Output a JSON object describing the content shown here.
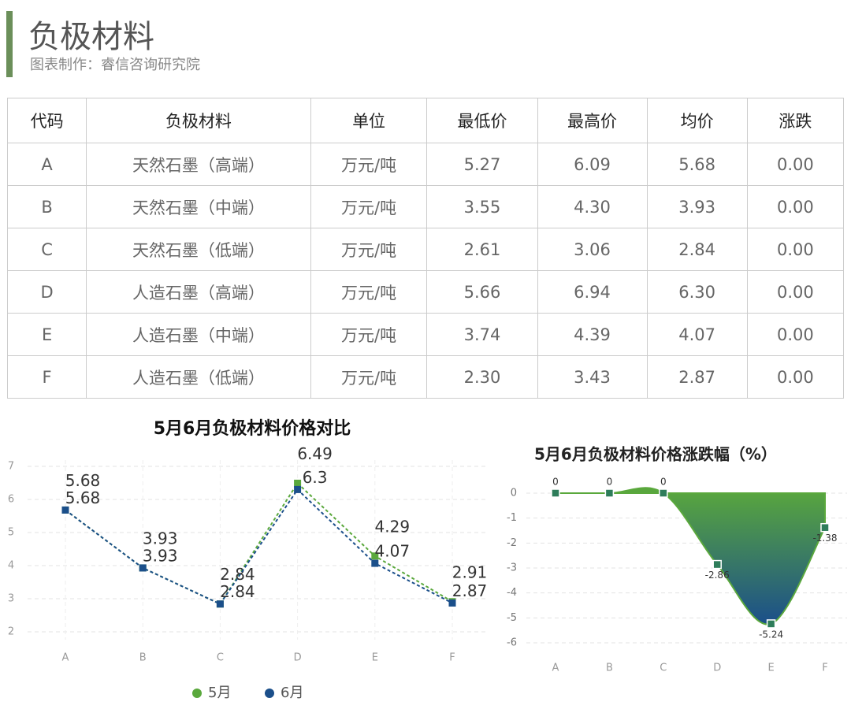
{
  "header": {
    "title": "负极材料",
    "subtitle": "图表制作：睿信咨询研究院"
  },
  "table": {
    "columns": [
      "代码",
      "负极材料",
      "单位",
      "最低价",
      "最高价",
      "均价",
      "涨跌"
    ],
    "rows": [
      [
        "A",
        "天然石墨（高端）",
        "万元/吨",
        "5.27",
        "6.09",
        "5.68",
        "0.00"
      ],
      [
        "B",
        "天然石墨（中端）",
        "万元/吨",
        "3.55",
        "4.30",
        "3.93",
        "0.00"
      ],
      [
        "C",
        "天然石墨（低端）",
        "万元/吨",
        "2.61",
        "3.06",
        "2.84",
        "0.00"
      ],
      [
        "D",
        "人造石墨（高端）",
        "万元/吨",
        "5.66",
        "6.94",
        "6.30",
        "0.00"
      ],
      [
        "E",
        "人造石墨（中端）",
        "万元/吨",
        "3.74",
        "4.39",
        "4.07",
        "0.00"
      ],
      [
        "F",
        "人造石墨（低端）",
        "万元/吨",
        "2.30",
        "3.43",
        "2.87",
        "0.00"
      ]
    ]
  },
  "chart_data": [
    {
      "type": "line",
      "title": "5月6月负极材料价格对比",
      "categories": [
        "A",
        "B",
        "C",
        "D",
        "E",
        "F"
      ],
      "series": [
        {
          "name": "5月",
          "color": "#5aa83c",
          "values": [
            5.68,
            3.93,
            2.84,
            6.49,
            4.29,
            2.91
          ]
        },
        {
          "name": "6月",
          "color": "#1b4f8a",
          "values": [
            5.68,
            3.93,
            2.84,
            6.3,
            4.07,
            2.87
          ]
        }
      ],
      "ylim": [
        2,
        7
      ],
      "yticks": [
        2,
        3,
        4,
        5,
        6,
        7
      ],
      "grid": true,
      "legend": "bottom"
    },
    {
      "type": "area",
      "title": "5月6月负极材料价格涨跌幅（%）",
      "categories": [
        "A",
        "B",
        "C",
        "D",
        "E",
        "F"
      ],
      "values": [
        0,
        0,
        0,
        -2.86,
        -5.24,
        -1.38
      ],
      "color": "#5aa83c",
      "color2": "#1b4f8a",
      "ylim": [
        -6,
        0
      ],
      "yticks": [
        0,
        -1,
        -2,
        -3,
        -4,
        -5,
        -6
      ],
      "grid": true
    }
  ]
}
